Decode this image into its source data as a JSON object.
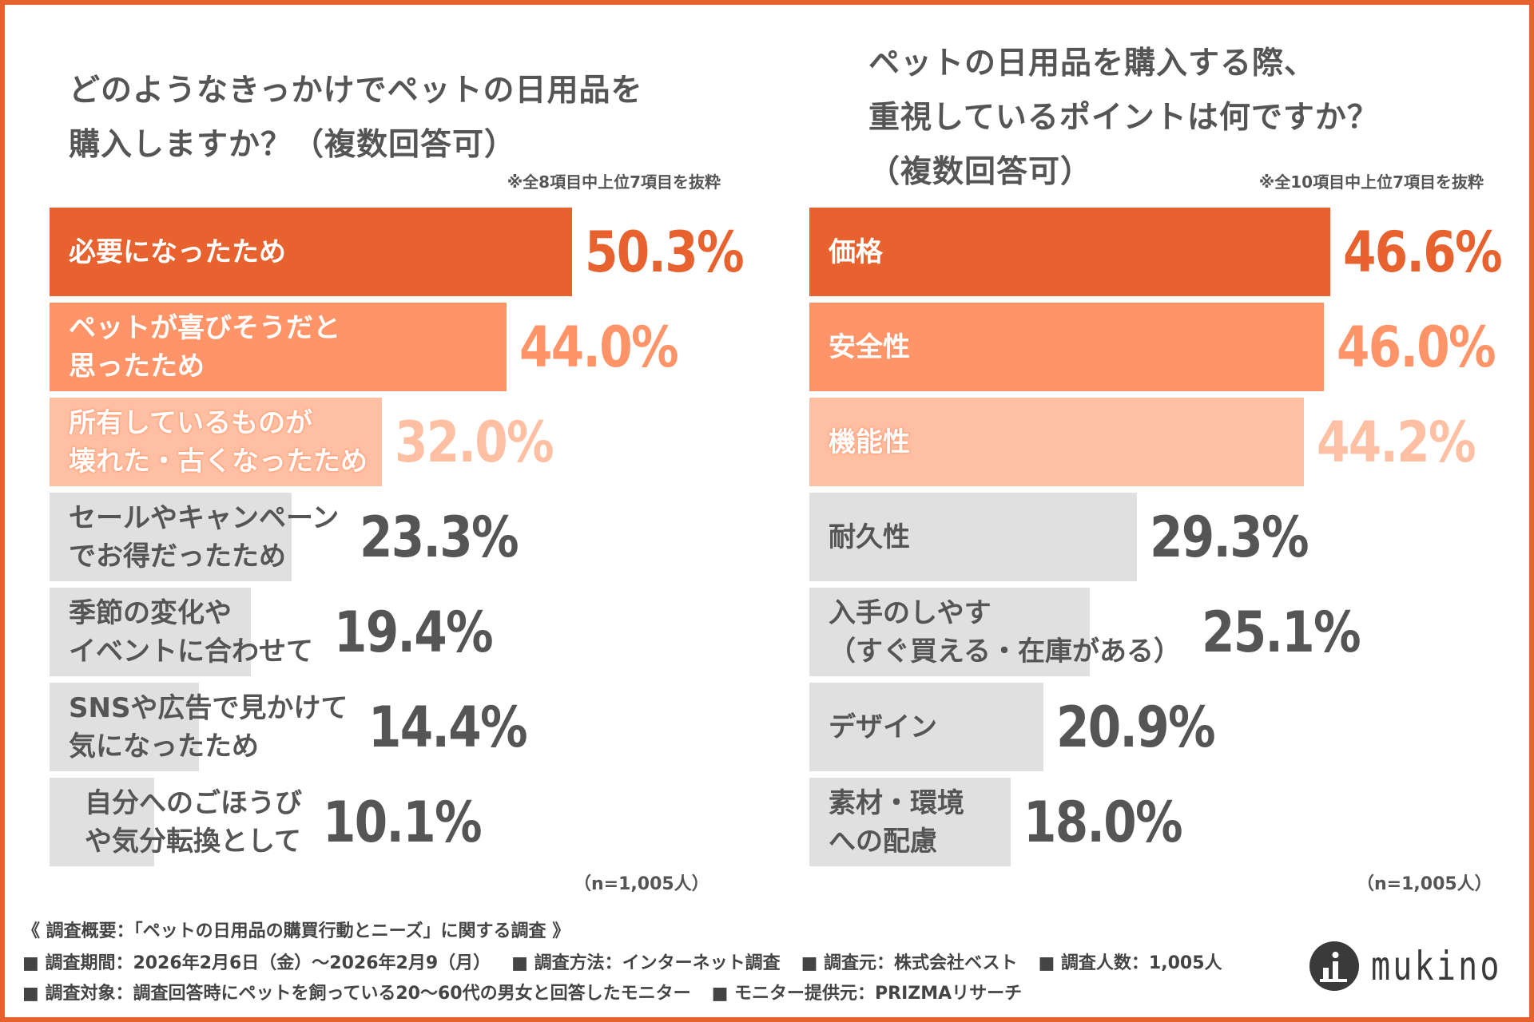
{
  "colors": {
    "accent": "#E8622F",
    "mid": "#FF9468",
    "light": "#FFBFA3",
    "gray": "#E0E0E0",
    "text": "#555555"
  },
  "chart_data": [
    {
      "type": "bar",
      "orientation": "horizontal",
      "title": [
        "どのようなきっかけでペットの日用品を",
        "購入しますか？（複数回答可）"
      ],
      "note": "※全8項目中上位7項目を抜粋",
      "sample": "（n=1,005人）",
      "unit": "%",
      "categories": [
        [
          "必要になったため"
        ],
        [
          "ペットが喜びそうだと",
          "思ったため"
        ],
        [
          "所有しているものが",
          "壊れた・古くなったため"
        ],
        [
          "セールやキャンペーン",
          "でお得だったため"
        ],
        [
          "季節の変化や",
          "イベントに合わせて"
        ],
        [
          "SNSや広告で見かけて",
          "気になったため"
        ],
        [
          "自分へのごほうび",
          "や気分転換として"
        ]
      ],
      "values": [
        50.3,
        44.0,
        32.0,
        23.3,
        19.4,
        14.4,
        10.1
      ],
      "labels": [
        "50.3%",
        "44.0%",
        "32.0%",
        "23.3%",
        "19.4%",
        "14.4%",
        "10.1%"
      ]
    },
    {
      "type": "bar",
      "orientation": "horizontal",
      "title": [
        "ペットの日用品を購入する際、",
        "重視しているポイントは何ですか？",
        "（複数回答可）"
      ],
      "note": "※全10項目中上位7項目を抜粋",
      "sample": "（n=1,005人）",
      "unit": "%",
      "categories": [
        [
          "価格"
        ],
        [
          "安全性"
        ],
        [
          "機能性"
        ],
        [
          "耐久性"
        ],
        [
          "入手のしやす",
          "（すぐ買える・在庫がある）"
        ],
        [
          "デザイン"
        ],
        [
          "素材・環境",
          "への配慮"
        ]
      ],
      "values": [
        46.6,
        46.0,
        44.2,
        29.3,
        25.1,
        20.9,
        18.0
      ],
      "labels": [
        "46.6%",
        "46.0%",
        "44.2%",
        "29.3%",
        "25.1%",
        "20.9%",
        "18.0%"
      ]
    }
  ],
  "footer": {
    "line1": "《 調査概要：「ペットの日用品の購買行動とニーズ」に関する調査 》",
    "line2": [
      "■ 調査期間：2026年2月6日（金）～2026年2月9（月）",
      "■ 調査方法：インターネット調査",
      "■ 調査元：株式会社ベスト",
      "■ 調査人数：1,005人"
    ],
    "line3": [
      "■ 調査対象：調査回答時にペットを飼っている20～60代の男女と回答したモニター",
      "■ モニター提供元：PRIZMAリサーチ"
    ]
  },
  "logo": {
    "text": "mukino"
  }
}
